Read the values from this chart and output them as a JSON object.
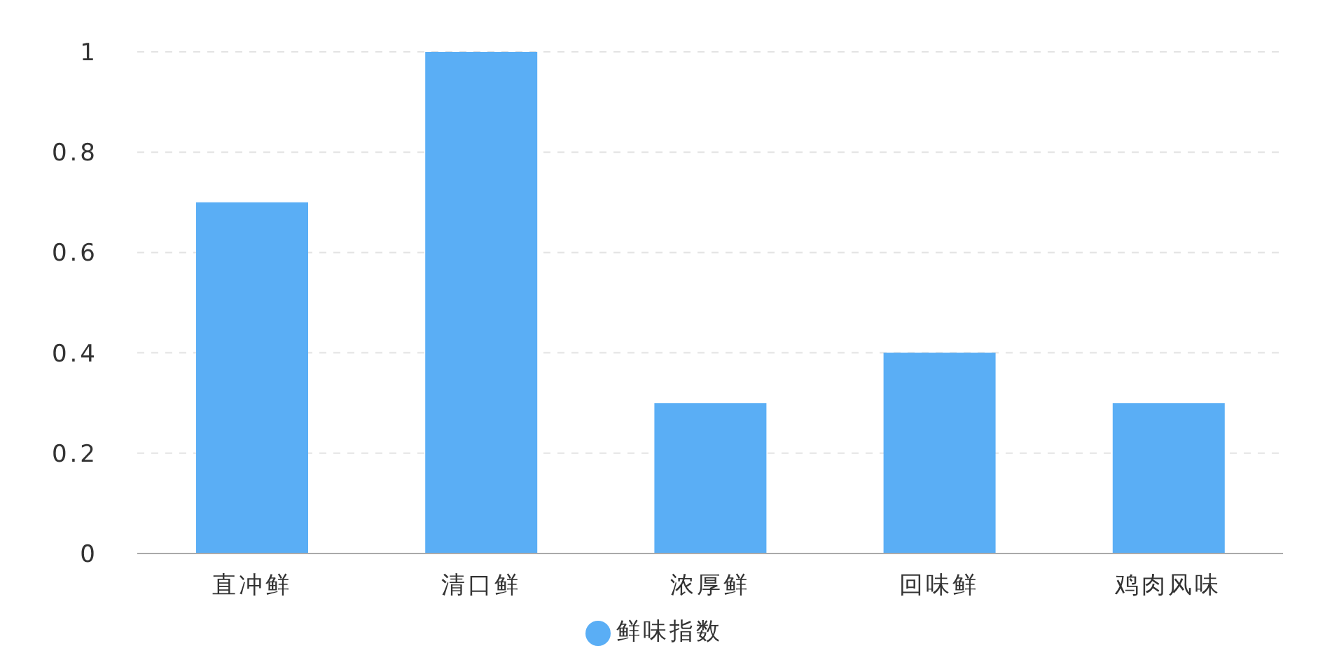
{
  "chart_data": {
    "type": "bar",
    "categories": [
      "直冲鲜",
      "清口鲜",
      "浓厚鲜",
      "回味鲜",
      "鸡肉风味"
    ],
    "series": [
      {
        "name": "鲜味指数",
        "color": "#5aaef5",
        "values": [
          0.7,
          1,
          0.3,
          0.4,
          0.3
        ]
      }
    ],
    "ylim": [
      0,
      1
    ],
    "yticks": [
      0,
      0.2,
      0.4,
      0.6,
      0.8,
      1
    ],
    "grid": "y",
    "legend": "bottom"
  }
}
